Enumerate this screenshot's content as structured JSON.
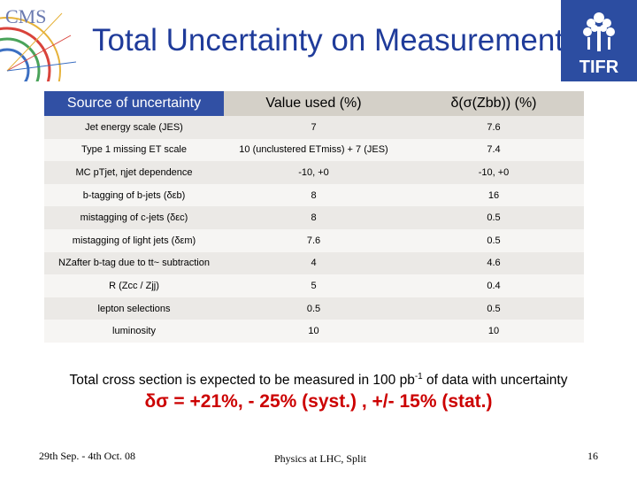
{
  "header": {
    "title": "Total Uncertainty on Measurement",
    "cms_logo_text": "CMS",
    "tifr_logo_text": "TIFR"
  },
  "table": {
    "headers": [
      "Source of uncertainty",
      "Value used (%)",
      "δ(σ(Zbb)) (%)"
    ],
    "rows": [
      {
        "source": "Jet energy scale (JES)",
        "value": "7",
        "delta": "7.6"
      },
      {
        "source": "Type 1 missing ET scale",
        "value": "10 (unclustered ETmiss) + 7 (JES)",
        "delta": "7.4"
      },
      {
        "source": "MC pTjet, ηjet dependence",
        "value": "-10, +0",
        "delta": "-10, +0"
      },
      {
        "source": "b-tagging of b-jets (δεb)",
        "value": "8",
        "delta": "16"
      },
      {
        "source": "mistagging of c-jets (δεc)",
        "value": "8",
        "delta": "0.5"
      },
      {
        "source": "mistagging of light jets (δεm)",
        "value": "7.6",
        "delta": "0.5"
      },
      {
        "source": "NZafter b-tag due to tt~ subtraction",
        "value": "4",
        "delta": "4.6"
      },
      {
        "source": "R (Zcc / Zjj)",
        "value": "5",
        "delta": "0.4"
      },
      {
        "source": "lepton selections",
        "value": "0.5",
        "delta": "0.5"
      },
      {
        "source": "luminosity",
        "value": "10",
        "delta": "10"
      }
    ]
  },
  "summary": {
    "pre": "Total cross section is expected to be measured in 100 pb",
    "sup": "-1",
    "post": " of data with uncertainty"
  },
  "result": "δσ = +21%, - 25% (syst.) ,  +/- 15% (stat.)",
  "footer": {
    "date": "29th Sep. - 4th Oct.  08",
    "center": "Physics at LHC, Split",
    "page": "16"
  },
  "colors": {
    "title": "#1f3b9a",
    "header_accent": "#3150a4",
    "result": "#cc0000"
  }
}
